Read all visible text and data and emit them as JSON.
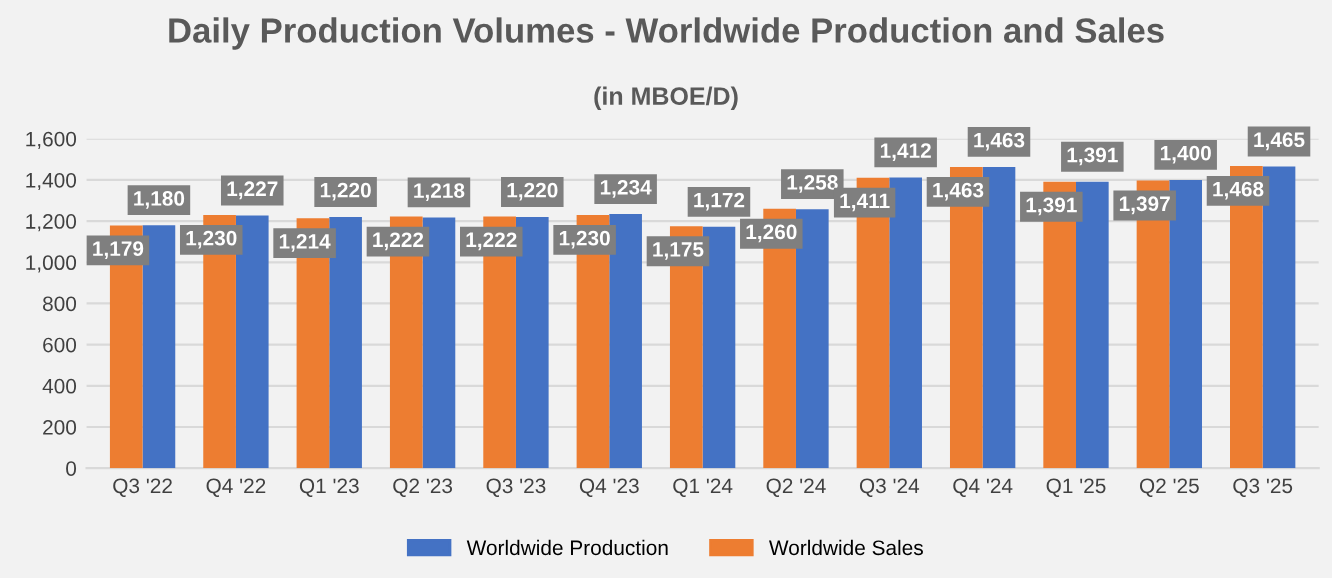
{
  "chart_data": {
    "type": "bar",
    "title": "Daily Production Volumes - Worldwide Production and Sales",
    "subtitle": "(in MBOE/D)",
    "categories": [
      "Q3 '22",
      "Q4 '22",
      "Q1 '23",
      "Q2 '23",
      "Q3 '23",
      "Q4 '23",
      "Q1 '24",
      "Q2 '24",
      "Q3 '24",
      "Q4 '24",
      "Q1 '25",
      "Q2 '25",
      "Q3 '25"
    ],
    "series": [
      {
        "name": "Worldwide Production",
        "color": "#4472c4",
        "values": [
          1180,
          1227,
          1220,
          1218,
          1220,
          1234,
          1172,
          1258,
          1412,
          1463,
          1391,
          1400,
          1465
        ],
        "value_labels": [
          "1,180",
          "1,227",
          "1,220",
          "1,218",
          "1,220",
          "1,234",
          "1,172",
          "1,258",
          "1,412",
          "1,463",
          "1,391",
          "1,400",
          "1,465"
        ]
      },
      {
        "name": "Worldwide Sales",
        "color": "#ed7d31",
        "values": [
          1179,
          1230,
          1214,
          1222,
          1222,
          1230,
          1175,
          1260,
          1411,
          1463,
          1391,
          1397,
          1468
        ],
        "value_labels": [
          "1,179",
          "1,230",
          "1,214",
          "1,222",
          "1,222",
          "1,230",
          "1,175",
          "1,260",
          "1,411",
          "1,463",
          "1,391",
          "1,397",
          "1,468"
        ]
      }
    ],
    "ylim": [
      0,
      1600
    ],
    "yticks": [
      0,
      200,
      400,
      600,
      800,
      {
        "value": 1000,
        "label": "1,000"
      },
      {
        "value": 1200,
        "label": "1,200"
      },
      {
        "value": 1400,
        "label": "1,400"
      },
      {
        "value": 1600,
        "label": "1,600"
      }
    ],
    "grid": "y",
    "legend": "bottom"
  }
}
